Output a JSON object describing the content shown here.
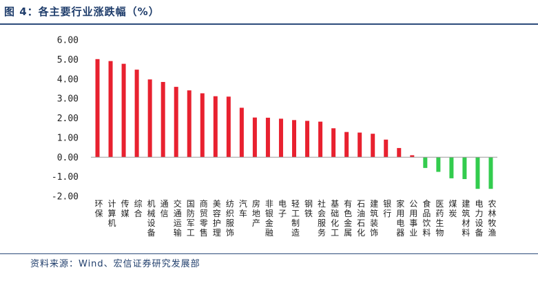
{
  "figure": {
    "title": "图 4：各主要行业涨跌幅（%）",
    "source": "资料来源：Wind、宏信证券研究发展部"
  },
  "colors": {
    "positive": "#e8212f",
    "negative": "#33cc4e"
  },
  "chart_data": {
    "type": "bar",
    "title": "各主要行业涨跌幅（%）",
    "xlabel": "",
    "ylabel": "",
    "ylim": [
      -2.0,
      6.0
    ],
    "yticks": [
      "6.00",
      "5.00",
      "4.00",
      "3.00",
      "2.00",
      "1.00",
      "0.00",
      "-1.00",
      "-2.00"
    ],
    "ytick_values": [
      6,
      5,
      4,
      3,
      2,
      1,
      0,
      -1,
      -2
    ],
    "grid": false,
    "legend": "none",
    "categories": [
      "环保",
      "计算机",
      "传媒",
      "综合",
      "机械设备",
      "通信",
      "交通运输",
      "国防军工",
      "商贸零售",
      "美容护理",
      "纺织服饰",
      "汽车",
      "房地产",
      "非银金融",
      "电子",
      "轻工制造",
      "钢铁",
      "社会服务",
      "基础化工",
      "有色金属",
      "石油石化",
      "建筑装饰",
      "银行",
      "家用电器",
      "公用事业",
      "食品饮料",
      "医药生物",
      "煤炭",
      "建筑材料",
      "电力设备",
      "农林牧渔"
    ],
    "values": [
      5.02,
      4.92,
      4.78,
      4.48,
      3.98,
      3.85,
      3.6,
      3.42,
      3.27,
      3.12,
      3.1,
      2.53,
      2.03,
      2.02,
      1.97,
      1.9,
      1.86,
      1.82,
      1.48,
      1.29,
      1.26,
      1.2,
      0.9,
      0.47,
      0.1,
      -0.55,
      -0.75,
      -1.08,
      -1.12,
      -1.62,
      -1.62
    ]
  }
}
